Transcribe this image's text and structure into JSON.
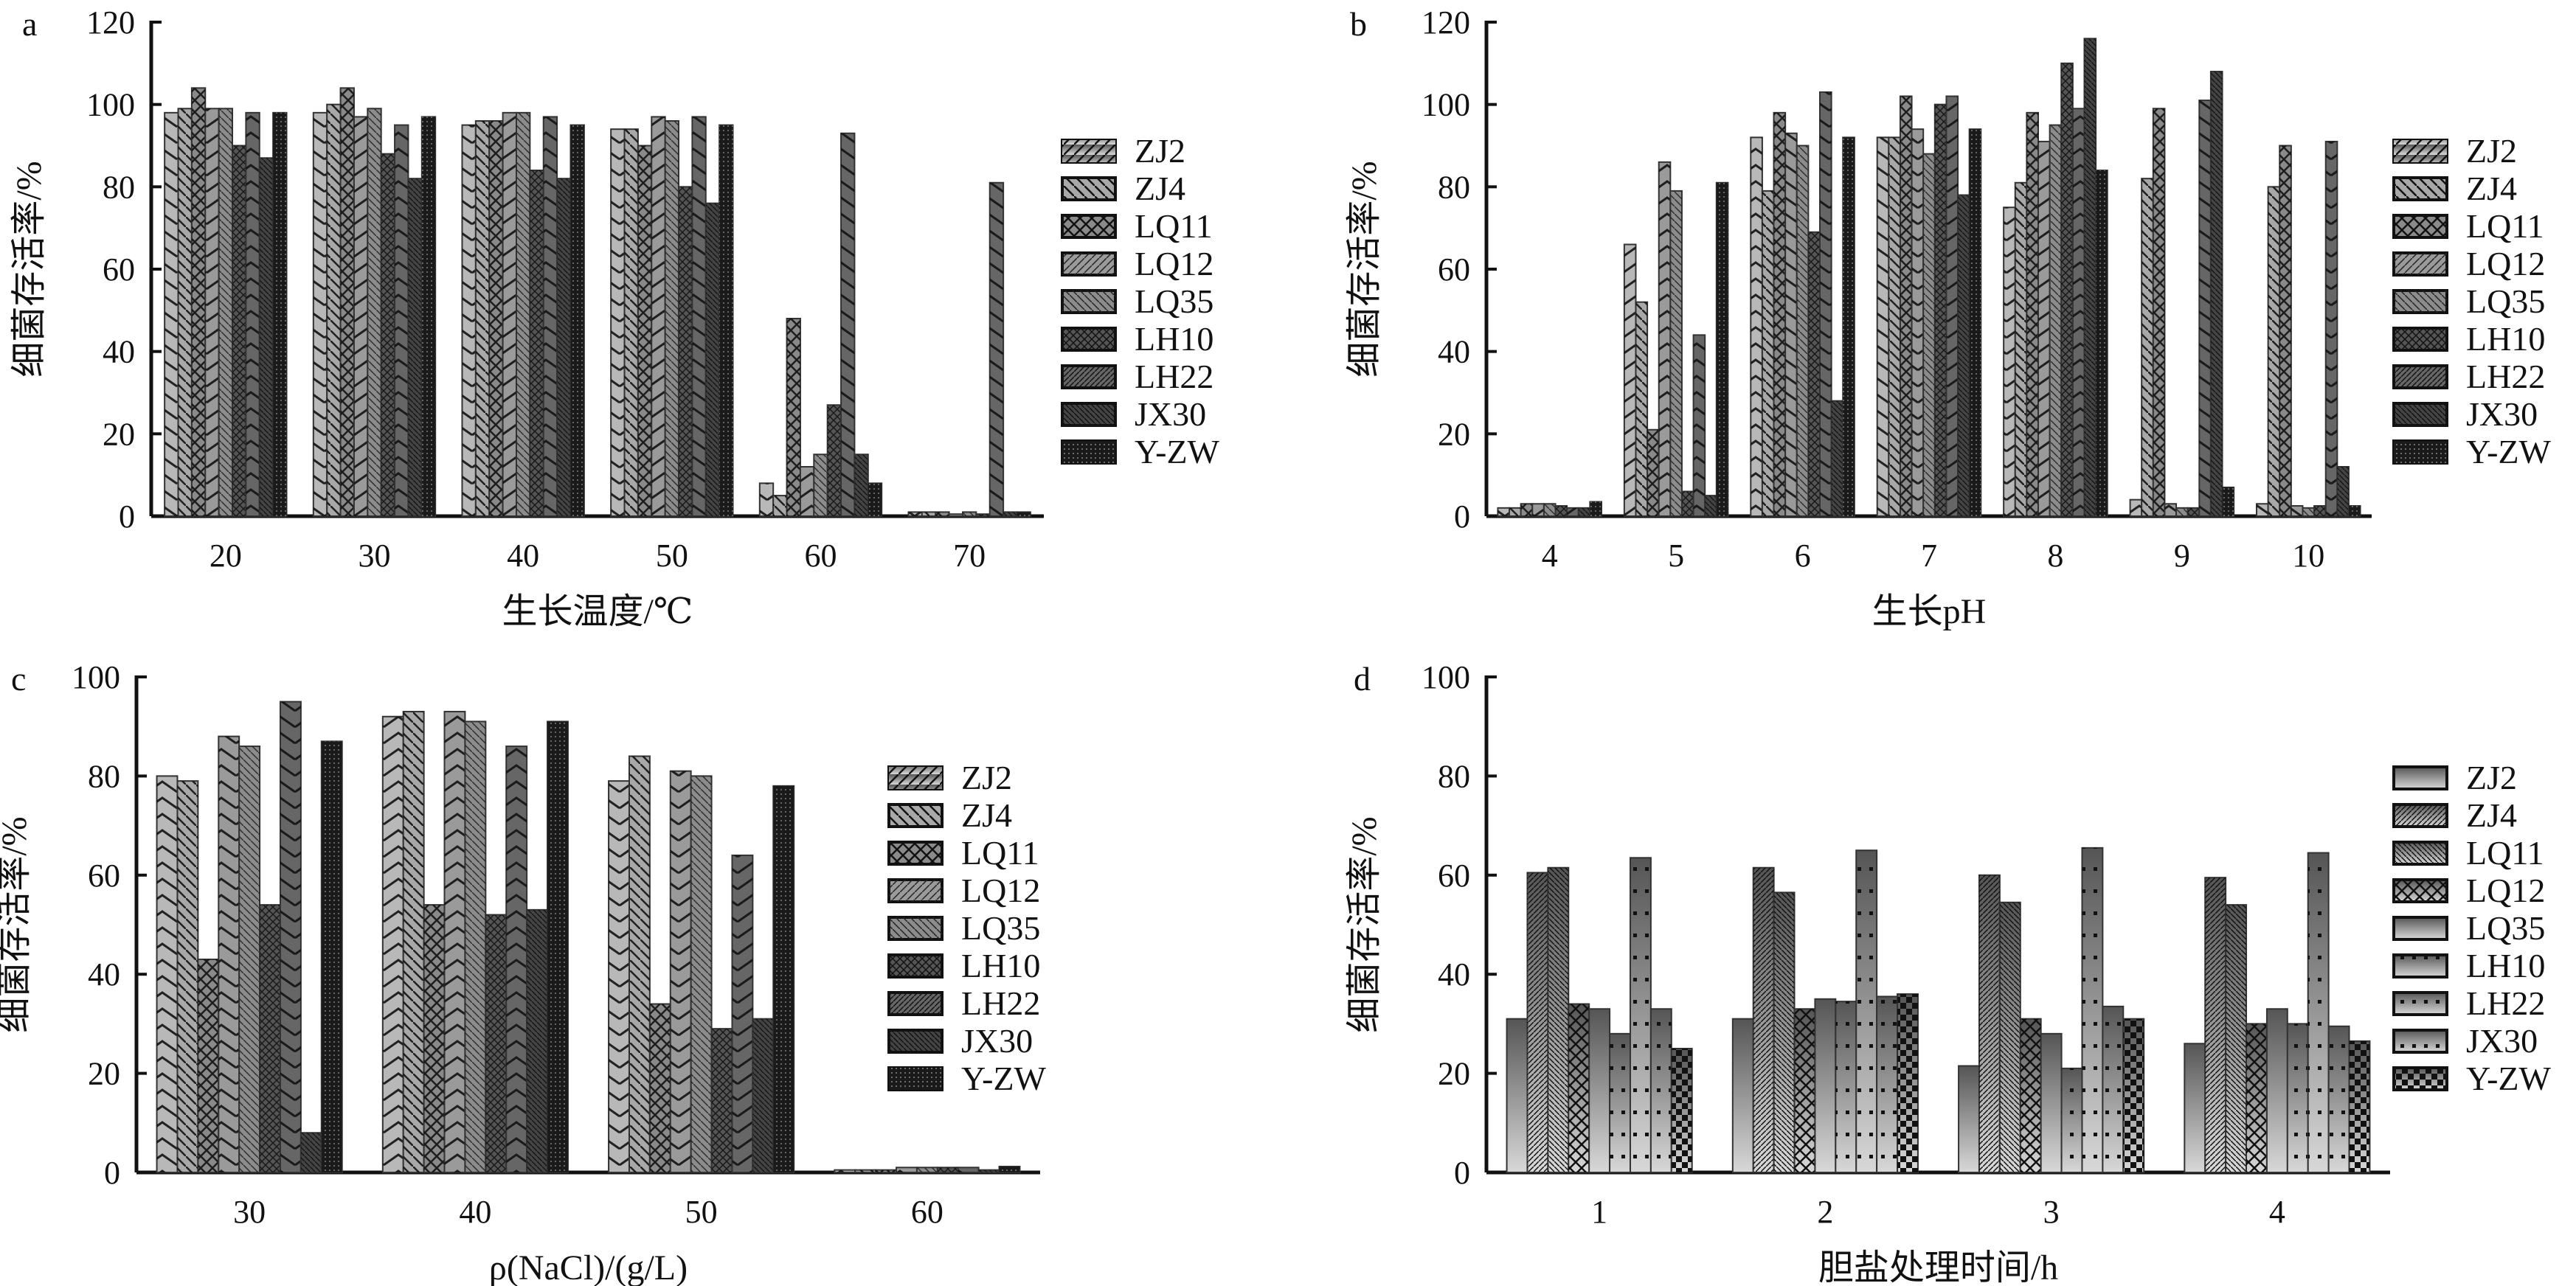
{
  "chart_data": [
    {
      "type": "bar",
      "panel": "a",
      "title": "",
      "xlabel": "生长温度/℃",
      "ylabel": "细菌存活率/%",
      "ylim": [
        0,
        120
      ],
      "yticks": [
        0,
        20,
        40,
        60,
        80,
        100,
        120
      ],
      "categories": [
        "20",
        "30",
        "40",
        "50",
        "60",
        "70"
      ],
      "legend_position": "right",
      "series": [
        {
          "name": "ZJ2",
          "values": [
            98,
            98,
            95,
            94,
            8,
            1
          ]
        },
        {
          "name": "ZJ4",
          "values": [
            99,
            100,
            96,
            94,
            5,
            1
          ]
        },
        {
          "name": "LQ11",
          "values": [
            104,
            104,
            96,
            90,
            48,
            1
          ]
        },
        {
          "name": "LQ12",
          "values": [
            99,
            97,
            98,
            97,
            12,
            0.5
          ]
        },
        {
          "name": "LQ35",
          "values": [
            99,
            99,
            98,
            96,
            15,
            1
          ]
        },
        {
          "name": "LH10",
          "values": [
            90,
            88,
            84,
            80,
            27,
            0.5
          ]
        },
        {
          "name": "LH22",
          "values": [
            98,
            95,
            97,
            97,
            93,
            81
          ]
        },
        {
          "name": "JX30",
          "values": [
            87,
            82,
            82,
            76,
            15,
            1
          ]
        },
        {
          "name": "Y-ZW",
          "values": [
            98,
            97,
            95,
            95,
            8,
            1
          ]
        }
      ]
    },
    {
      "type": "bar",
      "panel": "b",
      "title": "",
      "xlabel": "生长pH",
      "ylabel": "细菌存活率/%",
      "ylim": [
        0,
        120
      ],
      "yticks": [
        0,
        20,
        40,
        60,
        80,
        100,
        120
      ],
      "categories": [
        "4",
        "5",
        "6",
        "7",
        "8",
        "9",
        "10"
      ],
      "legend_position": "right",
      "series": [
        {
          "name": "ZJ2",
          "values": [
            2,
            66,
            92,
            92,
            75,
            4,
            3
          ]
        },
        {
          "name": "ZJ4",
          "values": [
            2,
            52,
            79,
            92,
            81,
            82,
            80
          ]
        },
        {
          "name": "LQ11",
          "values": [
            3,
            21,
            98,
            102,
            98,
            99,
            90
          ]
        },
        {
          "name": "LQ12",
          "values": [
            3,
            86,
            93,
            94,
            91,
            3,
            2.5
          ]
        },
        {
          "name": "LQ35",
          "values": [
            3,
            79,
            90,
            88,
            95,
            2,
            2
          ]
        },
        {
          "name": "LH10",
          "values": [
            2.5,
            6,
            69,
            100,
            110,
            2,
            2.5
          ]
        },
        {
          "name": "LH22",
          "values": [
            2,
            44,
            103,
            102,
            99,
            101,
            91
          ]
        },
        {
          "name": "JX30",
          "values": [
            2,
            5,
            28,
            78,
            116,
            108,
            12
          ]
        },
        {
          "name": "Y-ZW",
          "values": [
            3.5,
            81,
            92,
            94,
            84,
            7,
            2.5
          ]
        }
      ]
    },
    {
      "type": "bar",
      "panel": "c",
      "title": "",
      "xlabel": "ρ(NaCl)/(g/L)",
      "ylabel": "细菌存活率/%",
      "ylim": [
        0,
        100
      ],
      "yticks": [
        0,
        20,
        40,
        60,
        80,
        100
      ],
      "categories": [
        "30",
        "40",
        "50",
        "60"
      ],
      "legend_position": "right",
      "series": [
        {
          "name": "ZJ2",
          "values": [
            80,
            92,
            79,
            0.5
          ]
        },
        {
          "name": "ZJ4",
          "values": [
            79,
            93,
            84,
            0.5
          ]
        },
        {
          "name": "LQ11",
          "values": [
            43,
            54,
            34,
            0.5
          ]
        },
        {
          "name": "LQ12",
          "values": [
            88,
            93,
            81,
            1
          ]
        },
        {
          "name": "LQ35",
          "values": [
            86,
            91,
            80,
            1
          ]
        },
        {
          "name": "LH10",
          "values": [
            54,
            52,
            29,
            1
          ]
        },
        {
          "name": "LH22",
          "values": [
            95,
            86,
            64,
            1
          ]
        },
        {
          "name": "JX30",
          "values": [
            8,
            53,
            31,
            0.5
          ]
        },
        {
          "name": "Y-ZW",
          "values": [
            87,
            91,
            78,
            1.2
          ]
        }
      ]
    },
    {
      "type": "bar",
      "panel": "d",
      "title": "",
      "xlabel": "胆盐处理时间/h",
      "ylabel": "细菌存活率/%",
      "ylim": [
        0,
        100
      ],
      "yticks": [
        0,
        20,
        40,
        60,
        80,
        100
      ],
      "categories": [
        "1",
        "2",
        "3",
        "4"
      ],
      "legend_position": "right",
      "series": [
        {
          "name": "ZJ2",
          "values": [
            31,
            31,
            21.5,
            26
          ]
        },
        {
          "name": "ZJ4",
          "values": [
            60.5,
            61.5,
            60,
            59.5
          ]
        },
        {
          "name": "LQ11",
          "values": [
            61.5,
            56.5,
            54.5,
            54
          ]
        },
        {
          "name": "LQ12",
          "values": [
            34,
            33,
            31,
            30
          ]
        },
        {
          "name": "LQ35",
          "values": [
            33,
            35,
            28,
            33
          ]
        },
        {
          "name": "LH10",
          "values": [
            28,
            34.5,
            21,
            30
          ]
        },
        {
          "name": "LH22",
          "values": [
            63.5,
            65,
            65.5,
            64.5
          ]
        },
        {
          "name": "JX30",
          "values": [
            33,
            35.5,
            33.5,
            29.5
          ]
        },
        {
          "name": "Y-ZW",
          "values": [
            25,
            36,
            31,
            26.5
          ]
        }
      ]
    }
  ]
}
